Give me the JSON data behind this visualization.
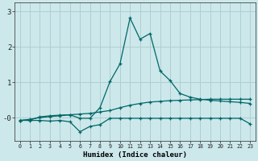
{
  "xlabel": "Humidex (Indice chaleur)",
  "background_color": "#cce8eb",
  "grid_color": "#b0ced2",
  "line_color": "#006666",
  "xlim": [
    -0.5,
    23.5
  ],
  "ylim": [
    -0.65,
    3.25
  ],
  "xticks": [
    0,
    1,
    2,
    3,
    4,
    5,
    6,
    7,
    8,
    9,
    10,
    11,
    12,
    13,
    14,
    15,
    16,
    17,
    18,
    19,
    20,
    21,
    22,
    23
  ],
  "series1_x": [
    0,
    1,
    2,
    3,
    4,
    5,
    6,
    7,
    8,
    9,
    10,
    11,
    12,
    13,
    14,
    15,
    16,
    17,
    18,
    19,
    20,
    21,
    22,
    23
  ],
  "series1_y": [
    -0.08,
    -0.05,
    0.0,
    0.03,
    0.05,
    0.08,
    0.1,
    0.12,
    0.16,
    0.2,
    0.28,
    0.35,
    0.4,
    0.44,
    0.46,
    0.48,
    0.49,
    0.5,
    0.51,
    0.52,
    0.52,
    0.52,
    0.52,
    0.52
  ],
  "series2_x": [
    0,
    1,
    2,
    3,
    4,
    5,
    6,
    7,
    8,
    9,
    10,
    11,
    12,
    13,
    14,
    15,
    16,
    17,
    18,
    19,
    20,
    21,
    22,
    23
  ],
  "series2_y": [
    -0.08,
    -0.08,
    -0.08,
    -0.1,
    -0.08,
    -0.12,
    -0.4,
    -0.25,
    -0.2,
    -0.02,
    -0.02,
    -0.02,
    -0.02,
    -0.02,
    -0.02,
    -0.02,
    -0.02,
    -0.02,
    -0.02,
    -0.02,
    -0.02,
    -0.02,
    -0.02,
    -0.18
  ],
  "series3_x": [
    0,
    1,
    2,
    3,
    4,
    5,
    6,
    7,
    8,
    9,
    10,
    11,
    12,
    13,
    14,
    15,
    16,
    17,
    18,
    19,
    20,
    21,
    22,
    23
  ],
  "series3_y": [
    -0.08,
    -0.07,
    0.02,
    0.05,
    0.07,
    0.08,
    -0.02,
    -0.02,
    0.28,
    1.02,
    1.52,
    2.82,
    2.22,
    2.38,
    1.32,
    1.05,
    0.68,
    0.58,
    0.52,
    0.49,
    0.47,
    0.45,
    0.43,
    0.4
  ]
}
